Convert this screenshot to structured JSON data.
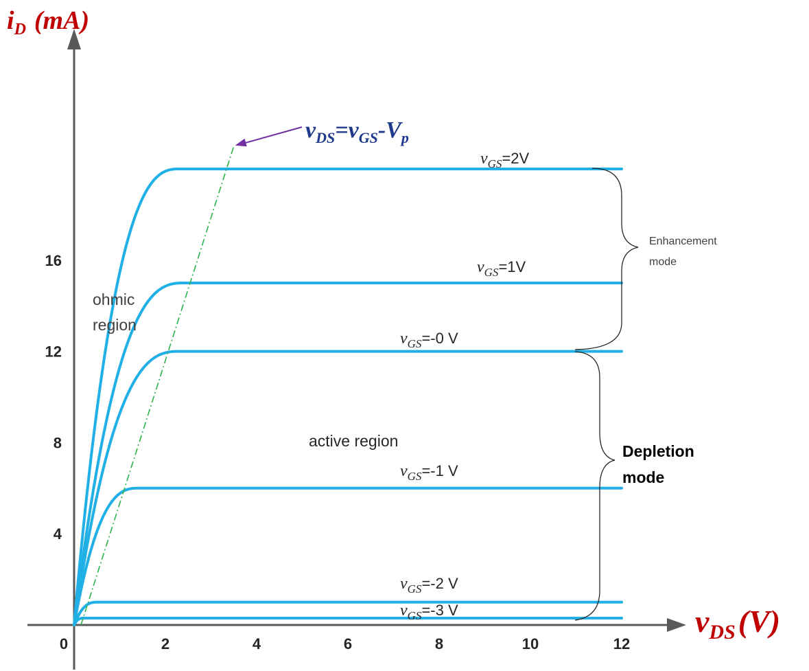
{
  "chart_data": {
    "type": "line",
    "title": "",
    "ylabel": {
      "main": "i",
      "sub": "D",
      "unit": "(mA)"
    },
    "xlabel": {
      "main": "v",
      "sub": "DS",
      "unit": "(V)"
    },
    "xlim": [
      0,
      12.5
    ],
    "ylim": [
      0,
      22
    ],
    "x_ticks": [
      "0",
      "2",
      "4",
      "6",
      "8",
      "10",
      "12"
    ],
    "y_ticks": [
      "4",
      "8",
      "12",
      "16"
    ],
    "grid": false,
    "series": [
      {
        "name": "vGS=2V",
        "label_main": "v",
        "label_sub": "GS",
        "label_rest": "=2V",
        "saturation": 20.0,
        "knee": 2.3,
        "x_end": 12
      },
      {
        "name": "vGS=1V",
        "label_main": "v",
        "label_sub": "GS",
        "label_rest": "=1V",
        "saturation": 15.0,
        "knee": 2.4,
        "x_end": 12
      },
      {
        "name": "vGS=-0 V",
        "label_main": "v",
        "label_sub": "GS",
        "label_rest": "=-0 V",
        "saturation": 12.0,
        "knee": 2.3,
        "x_end": 12
      },
      {
        "name": "vGS=-1 V",
        "label_main": "v",
        "label_sub": "GS",
        "label_rest": "=-1 V",
        "saturation": 6.0,
        "knee": 1.4,
        "x_end": 12
      },
      {
        "name": "vGS=-2 V",
        "label_main": "v",
        "label_sub": "GS",
        "label_rest": "=-2 V",
        "saturation": 1.0,
        "knee": 0.5,
        "x_end": 12
      },
      {
        "name": "vGS=-3 V",
        "label_main": "v",
        "label_sub": "GS",
        "label_rest": "=-3 V",
        "saturation": 0.3,
        "knee": 0.2,
        "x_end": 12
      }
    ],
    "pinch_off_line": {
      "label": {
        "a": "v",
        "a_sub": "DS",
        "eq": "=",
        "b": "v",
        "b_sub": "GS",
        "dash": "-",
        "c": "V",
        "c_sub": "p"
      },
      "from": [
        0.15,
        0
      ],
      "to": [
        3.5,
        21.0
      ]
    },
    "annotations": {
      "ohmic_line1": "ohmic",
      "ohmic_line2": "region",
      "active": "active  region",
      "enhancement_line1": "Enhancement",
      "enhancement_line2": "mode",
      "depletion_line1": "Depletion",
      "depletion_line2": "mode"
    },
    "colors": {
      "curve": "#21b0e6",
      "axis": "#595959",
      "axis_title": "#c00000",
      "pinch_label": "#1f3a8a",
      "pinch_line": "#2bb24c",
      "arrow": "#7030a0"
    }
  }
}
